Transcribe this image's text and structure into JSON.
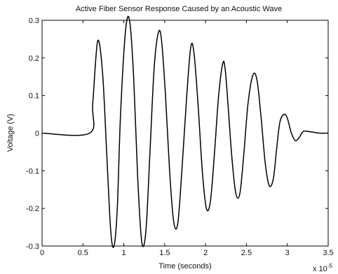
{
  "chart_data": {
    "type": "line",
    "title": "Active Fiber Sensor Response Caused by an Acoustic Wave",
    "xlabel": "Time (seconds)",
    "ylabel": "Voltage (V)",
    "x_multiplier_base": "x 10",
    "x_multiplier_exp": "-5",
    "xlim": [
      0,
      3.5
    ],
    "ylim": [
      -0.3,
      0.3
    ],
    "xticks": [
      "0",
      "0.5",
      "1",
      "1.5",
      "2",
      "2.5",
      "3",
      "3.5"
    ],
    "yticks": [
      "0.3",
      "0.2",
      "0.1",
      "0",
      "-0.1",
      "-0.2",
      "-0.3"
    ],
    "grid": false,
    "line_color": "#000000",
    "series": [
      {
        "x": [
          0,
          0.58,
          0.62,
          0.68,
          0.74,
          0.79,
          0.84,
          0.88,
          0.92,
          0.96,
          1.02,
          1.07,
          1.12,
          1.17,
          1.22,
          1.27,
          1.32,
          1.37,
          1.42,
          1.46,
          1.51,
          1.56,
          1.61,
          1.66,
          1.71,
          1.77,
          1.82,
          1.86,
          1.91,
          1.96,
          2.01,
          2.06,
          2.11,
          2.16,
          2.21,
          2.24,
          2.28,
          2.32,
          2.37,
          2.42,
          2.47,
          2.52,
          2.58,
          2.63,
          2.68,
          2.73,
          2.78,
          2.83,
          2.87,
          2.91,
          2.96,
          3.0,
          3.05,
          3.1,
          3.15,
          3.2,
          3.3,
          3.4,
          3.5
        ],
        "y": [
          0,
          0,
          0.08,
          0.245,
          0.16,
          -0.05,
          -0.26,
          -0.3,
          -0.2,
          0.05,
          0.27,
          0.3,
          0.15,
          -0.12,
          -0.29,
          -0.26,
          -0.05,
          0.17,
          0.265,
          0.25,
          0.1,
          -0.1,
          -0.235,
          -0.24,
          -0.1,
          0.1,
          0.23,
          0.21,
          0.07,
          -0.1,
          -0.2,
          -0.18,
          -0.05,
          0.1,
          0.185,
          0.17,
          0.06,
          -0.06,
          -0.16,
          -0.16,
          -0.05,
          0.08,
          0.155,
          0.14,
          0.04,
          -0.08,
          -0.14,
          -0.12,
          -0.04,
          0.03,
          0.05,
          0.04,
          0.0,
          -0.02,
          -0.01,
          0.005,
          0.003,
          0.0,
          0.0
        ]
      }
    ]
  }
}
